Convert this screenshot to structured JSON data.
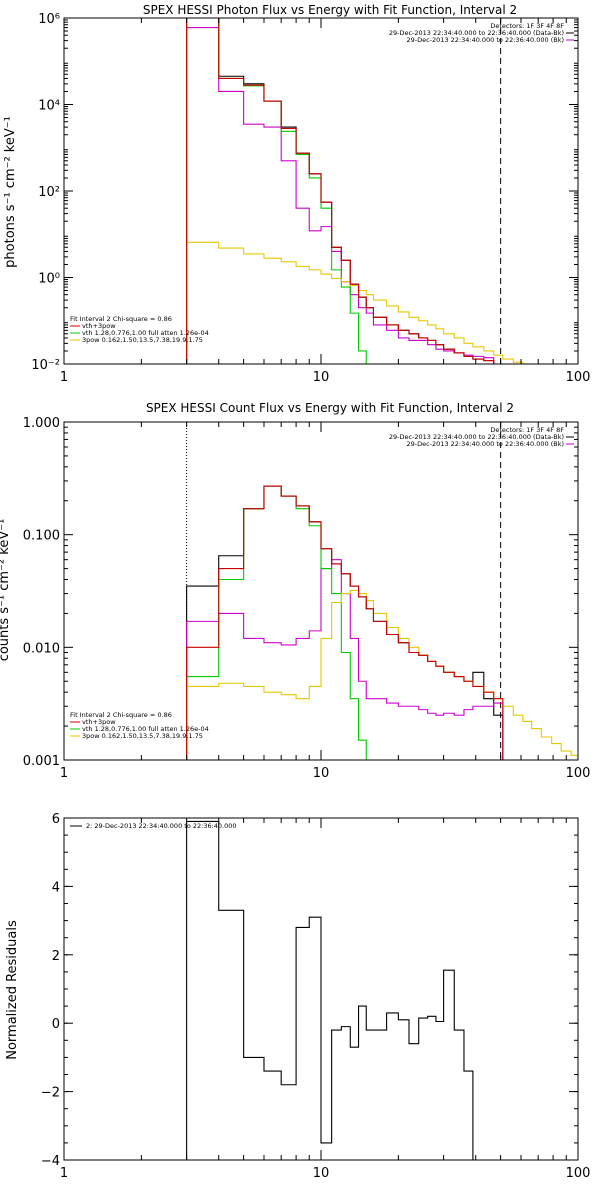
{
  "chart_data": [
    {
      "id": "photon",
      "type": "line",
      "title": "SPEX HESSI Photon Flux vs Energy with Fit Function, Interval 2",
      "ylabel": "photons s⁻¹ cm⁻² keV⁻¹",
      "xscale": "log",
      "yscale": "log",
      "xlim": [
        1,
        100
      ],
      "ylim": [
        0.01,
        1000000
      ],
      "xticks": [
        {
          "v": 1,
          "label": "1"
        },
        {
          "v": 10,
          "label": "10"
        },
        {
          "v": 100,
          "label": "100"
        }
      ],
      "yticks": [
        {
          "v": 0.01,
          "label": "10⁻²"
        },
        {
          "v": 1,
          "label": "10⁰"
        },
        {
          "v": 100,
          "label": "10²"
        },
        {
          "v": 10000,
          "label": "10⁴"
        },
        {
          "v": 1000000,
          "label": "10⁶"
        }
      ],
      "vlines": [
        {
          "x": 3,
          "style": "dotted",
          "color": "#000000"
        },
        {
          "x": 50,
          "style": "dashed",
          "color": "#000000"
        }
      ],
      "edges": [
        3,
        4,
        5,
        6,
        7,
        8,
        9,
        10,
        11,
        12,
        13,
        14,
        15,
        16,
        18,
        20,
        22,
        24,
        26,
        28,
        30,
        33,
        36,
        39,
        43,
        47,
        51,
        56,
        61,
        66,
        72
      ],
      "series": [
        {
          "color": "#000000",
          "values": [
            1300000,
            45000,
            30000,
            12000,
            3000,
            750,
            250,
            55,
            5,
            2.5,
            0.7,
            0.35,
            0.2,
            0.12,
            0.08,
            0.06,
            0.05,
            0.04,
            0.035,
            0.028,
            0.022,
            0.018,
            0.015,
            0.013,
            0.012,
            null,
            null,
            null,
            null,
            null
          ]
        },
        {
          "color": "#cc00cc",
          "values": [
            600000,
            20000,
            3500,
            3000,
            500,
            40,
            12,
            15,
            4,
            0.8,
            0.4,
            0.2,
            0.15,
            0.08,
            0.06,
            0.04,
            0.035,
            0.035,
            0.028,
            0.022,
            0.02,
            0.018,
            0.016,
            0.015,
            0.014,
            null,
            null,
            null,
            null,
            null
          ]
        },
        {
          "color": "#00cc00",
          "values": [
            1000000,
            40000,
            27000,
            12000,
            2400,
            700,
            200,
            40,
            1.5,
            0.6,
            0.15,
            0.02,
            0.005,
            null,
            null,
            null,
            null,
            null,
            null,
            null,
            null,
            null,
            null,
            null,
            null,
            null,
            null,
            null,
            null,
            null
          ]
        },
        {
          "color": "#e6c800",
          "values": [
            6.5,
            4.8,
            3.5,
            2.8,
            2.3,
            1.8,
            1.5,
            1.2,
            0.95,
            0.8,
            0.65,
            0.5,
            0.4,
            0.3,
            0.22,
            0.16,
            0.12,
            0.1,
            0.08,
            0.065,
            0.05,
            0.04,
            0.03,
            0.025,
            0.02,
            0.016,
            0.013,
            0.011,
            0.009,
            0.007
          ]
        },
        {
          "color": "#cc0000",
          "values": [
            1000000,
            40000,
            28000,
            12000,
            2800,
            750,
            250,
            55,
            5,
            2.5,
            0.7,
            0.35,
            0.2,
            0.12,
            0.08,
            0.06,
            0.05,
            0.04,
            0.035,
            0.028,
            0.022,
            0.018,
            0.015,
            0.013,
            0.012,
            null,
            null,
            null,
            null,
            null
          ]
        }
      ],
      "legend_top": [
        "Detectors: 1F 3F 4F 8F",
        "29-Dec-2013 22:34:40.000 to 22:36:40.000 (Data-Bk)",
        "29-Dec-2013 22:34:40.000 to 22:36:40.000 (Bk)"
      ],
      "legend_top_colors": [
        "#000000",
        "#000000",
        "#cc00cc"
      ],
      "legend_bottom": [
        "Fit Interval 2   Chi-square = 0.86",
        "vth+3pow",
        "vth 1.28,0.776,1.00  full atten 1.26e-04",
        "3pow 0.162,1.50,13.5,7.38,19.9,1.75"
      ],
      "legend_bottom_colors": [
        null,
        "#cc0000",
        "#00cc00",
        "#e6c800"
      ]
    },
    {
      "id": "count",
      "type": "line",
      "title": "SPEX HESSI Count Flux vs Energy with Fit Function, Interval 2",
      "ylabel": "counts s⁻¹ cm⁻² keV⁻¹",
      "xscale": "log",
      "yscale": "log",
      "xlim": [
        1,
        100
      ],
      "ylim": [
        0.001,
        1
      ],
      "xticks": [
        {
          "v": 1,
          "label": "1"
        },
        {
          "v": 10,
          "label": "10"
        },
        {
          "v": 100,
          "label": "100"
        }
      ],
      "yticks": [
        {
          "v": 0.001,
          "label": "0.001"
        },
        {
          "v": 0.01,
          "label": "0.010"
        },
        {
          "v": 0.1,
          "label": "0.100"
        },
        {
          "v": 1,
          "label": "1.000"
        }
      ],
      "vlines": [
        {
          "x": 3,
          "style": "dotted",
          "color": "#000000"
        },
        {
          "x": 50,
          "style": "dashed",
          "color": "#000000"
        }
      ],
      "edges": [
        3,
        4,
        5,
        6,
        7,
        8,
        9,
        10,
        11,
        12,
        13,
        14,
        15,
        16,
        18,
        20,
        22,
        24,
        26,
        28,
        30,
        33,
        36,
        39,
        43,
        47,
        51,
        56,
        61,
        66,
        72,
        79,
        86,
        94,
        100
      ],
      "series": [
        {
          "color": "#000000",
          "values": [
            0.035,
            0.065,
            0.17,
            0.27,
            0.22,
            0.18,
            0.13,
            0.075,
            0.055,
            0.045,
            0.035,
            0.028,
            0.022,
            0.017,
            0.013,
            0.011,
            0.009,
            0.0085,
            0.0075,
            0.0068,
            0.006,
            0.0055,
            0.005,
            0.006,
            0.0035,
            0.0025,
            null,
            null,
            null,
            null,
            null,
            null,
            null,
            null
          ]
        },
        {
          "color": "#cc00cc",
          "values": [
            0.017,
            0.02,
            0.012,
            0.011,
            0.0105,
            0.012,
            0.014,
            0.05,
            0.06,
            0.03,
            0.012,
            0.005,
            0.0035,
            0.0035,
            0.0032,
            0.003,
            0.003,
            0.0028,
            0.0026,
            0.0025,
            0.0026,
            0.0025,
            0.0028,
            0.003,
            0.003,
            0.0032,
            null,
            null,
            null,
            null,
            null,
            null,
            null,
            null
          ]
        },
        {
          "color": "#00cc00",
          "values": [
            0.0055,
            0.04,
            0.17,
            0.27,
            0.22,
            0.17,
            0.12,
            0.05,
            0.03,
            0.009,
            0.0035,
            0.0015,
            0.001,
            null,
            null,
            null,
            null,
            null,
            null,
            null,
            null,
            null,
            null,
            null,
            null,
            null,
            null,
            null,
            null,
            null,
            null,
            null,
            null,
            null
          ]
        },
        {
          "color": "#e6c800",
          "values": [
            0.0045,
            0.0048,
            0.0045,
            0.004,
            0.0038,
            0.0035,
            0.0045,
            0.012,
            0.025,
            0.03,
            0.032,
            0.03,
            0.026,
            0.02,
            0.015,
            0.012,
            0.01,
            0.0085,
            0.0075,
            0.0068,
            0.006,
            0.0055,
            0.005,
            0.0045,
            0.004,
            0.0035,
            0.003,
            0.0025,
            0.0022,
            0.0019,
            0.0016,
            0.0014,
            0.0012,
            0.0011
          ]
        },
        {
          "color": "#cc0000",
          "values": [
            0.01,
            0.05,
            0.17,
            0.27,
            0.22,
            0.18,
            0.13,
            0.075,
            0.055,
            0.045,
            0.035,
            0.028,
            0.022,
            0.017,
            0.013,
            0.011,
            0.009,
            0.0085,
            0.0075,
            0.0068,
            0.006,
            0.0055,
            0.005,
            0.0045,
            0.004,
            0.0035,
            null,
            null,
            null,
            null,
            null,
            null,
            null,
            null
          ]
        }
      ],
      "legend_top": [
        "Detectors: 1F 3F 4F 8F",
        "29-Dec-2013 22:34:40.000 to 22:36:40.000 (Data-Bk)",
        "29-Dec-2013 22:34:40.000 to 22:36:40.000 (Bk)"
      ],
      "legend_top_colors": [
        "#000000",
        "#000000",
        "#cc00cc"
      ],
      "legend_bottom": [
        "Fit Interval 2   Chi-square = 0.86",
        "vth+3pow",
        "vth 1.28,0.776,1.00  full atten 1.26e-04",
        "3pow 0.162,1.50,13.5,7.38,19.9,1.75"
      ],
      "legend_bottom_colors": [
        null,
        "#cc0000",
        "#00cc00",
        "#e6c800"
      ]
    },
    {
      "id": "resid",
      "type": "line",
      "title": "",
      "ylabel": "Normalized Residuals",
      "xscale": "log",
      "yscale": "linear",
      "xlim": [
        1,
        100
      ],
      "ylim": [
        -4,
        6
      ],
      "xticks": [
        {
          "v": 1,
          "label": "1"
        },
        {
          "v": 10,
          "label": "10"
        },
        {
          "v": 100,
          "label": "100"
        }
      ],
      "yticks": [
        {
          "v": -4,
          "label": "−4"
        },
        {
          "v": -2,
          "label": "−2"
        },
        {
          "v": 0,
          "label": "0"
        },
        {
          "v": 2,
          "label": "2"
        },
        {
          "v": 4,
          "label": "4"
        },
        {
          "v": 6,
          "label": "6"
        }
      ],
      "vlines": [],
      "edges": [
        3,
        4,
        5,
        6,
        7,
        8,
        9,
        10,
        11,
        12,
        13,
        14,
        15,
        16,
        18,
        20,
        22,
        24,
        26,
        28,
        30,
        33,
        36,
        39,
        43,
        47,
        51
      ],
      "series": [
        {
          "color": "#000000",
          "values": [
            5.9,
            3.3,
            -1.0,
            -1.4,
            -1.8,
            2.8,
            3.1,
            -3.5,
            -0.2,
            -0.1,
            -0.7,
            0.5,
            -0.2,
            -0.2,
            0.3,
            0.1,
            -0.6,
            0.15,
            0.2,
            0.05,
            1.55,
            -0.2,
            -1.4,
            null,
            null,
            null
          ],
          "baseline": -4
        }
      ],
      "legend_top": [
        "2: 29-Dec-2013 22:34:40.000 to 22:36:40.000"
      ],
      "legend_top_colors": [
        "#000000"
      ],
      "legend_bottom": [],
      "legend_bottom_colors": []
    }
  ]
}
